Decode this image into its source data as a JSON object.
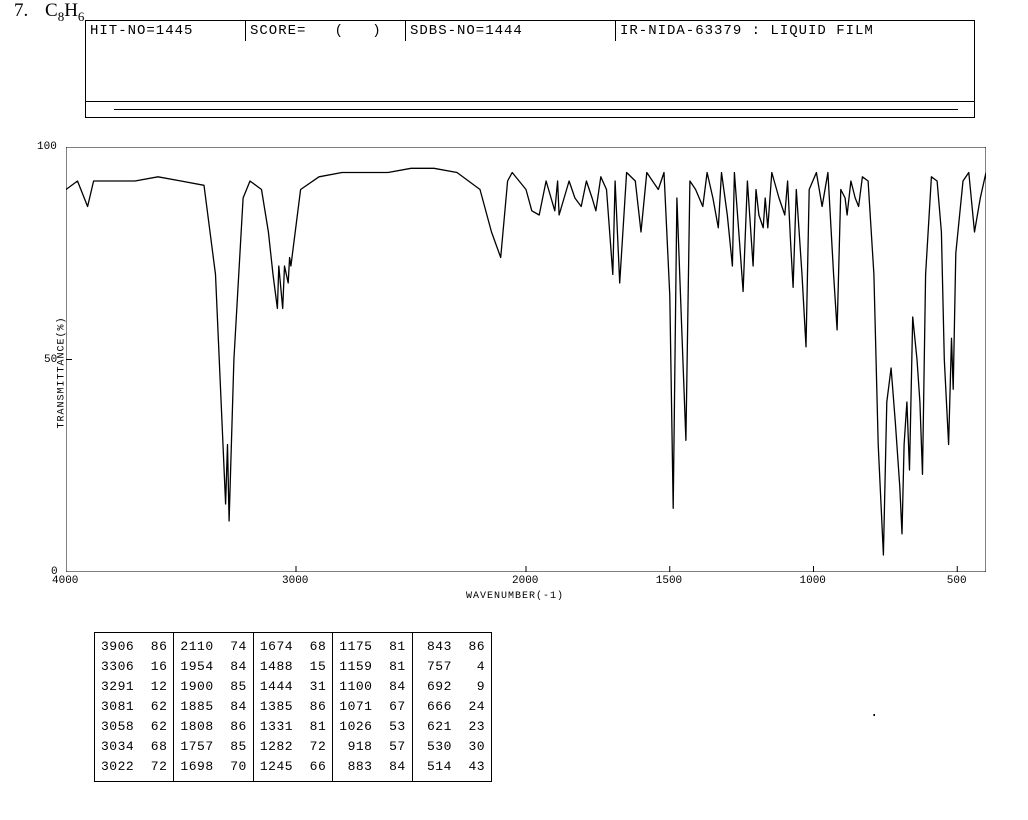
{
  "problem": {
    "number": "7.",
    "formula_base": "C",
    "sub1": "8",
    "mid": "H",
    "sub2": "6"
  },
  "header": {
    "hit_no": "HIT-NO=1445",
    "score": "SCORE=   (   )",
    "sdbs_no": "SDBS-NO=1444",
    "ir": "IR-NIDA-63379 : LIQUID FILM"
  },
  "chart": {
    "type": "line",
    "xlabel": "WAVENUMBER(-1)",
    "ylabel": "TRANSMITTANCE(%)",
    "xlim": [
      400,
      4000
    ],
    "ylim": [
      0,
      100
    ],
    "xticks": [
      4000,
      3000,
      2000,
      1500,
      1000,
      500
    ],
    "yticks": [
      0,
      50,
      100
    ],
    "xtick_labels": [
      "4000",
      "3000",
      "2000",
      "1500",
      "1000",
      "500"
    ],
    "ytick_labels": [
      "0",
      "50",
      "100"
    ],
    "line_color": "#000000",
    "background_color": "#ffffff",
    "border_color": "#000000",
    "label_fontsize": 10,
    "tick_fontsize": 11,
    "points": [
      [
        4000,
        90
      ],
      [
        3950,
        92
      ],
      [
        3906,
        86
      ],
      [
        3880,
        92
      ],
      [
        3800,
        92
      ],
      [
        3700,
        92
      ],
      [
        3600,
        93
      ],
      [
        3500,
        92
      ],
      [
        3400,
        91
      ],
      [
        3350,
        70
      ],
      [
        3306,
        16
      ],
      [
        3298,
        30
      ],
      [
        3291,
        12
      ],
      [
        3270,
        50
      ],
      [
        3230,
        88
      ],
      [
        3200,
        92
      ],
      [
        3150,
        90
      ],
      [
        3120,
        80
      ],
      [
        3100,
        70
      ],
      [
        3081,
        62
      ],
      [
        3075,
        72
      ],
      [
        3058,
        62
      ],
      [
        3050,
        72
      ],
      [
        3034,
        68
      ],
      [
        3028,
        74
      ],
      [
        3022,
        72
      ],
      [
        2980,
        90
      ],
      [
        2900,
        93
      ],
      [
        2800,
        94
      ],
      [
        2700,
        94
      ],
      [
        2600,
        94
      ],
      [
        2500,
        95
      ],
      [
        2400,
        95
      ],
      [
        2300,
        94
      ],
      [
        2200,
        90
      ],
      [
        2150,
        80
      ],
      [
        2110,
        74
      ],
      [
        2080,
        92
      ],
      [
        2060,
        94
      ],
      [
        2000,
        90
      ],
      [
        1980,
        85
      ],
      [
        1954,
        84
      ],
      [
        1930,
        92
      ],
      [
        1900,
        85
      ],
      [
        1890,
        92
      ],
      [
        1885,
        84
      ],
      [
        1850,
        92
      ],
      [
        1830,
        88
      ],
      [
        1808,
        86
      ],
      [
        1790,
        92
      ],
      [
        1770,
        88
      ],
      [
        1757,
        85
      ],
      [
        1740,
        93
      ],
      [
        1720,
        90
      ],
      [
        1698,
        70
      ],
      [
        1690,
        92
      ],
      [
        1674,
        68
      ],
      [
        1650,
        94
      ],
      [
        1620,
        92
      ],
      [
        1600,
        80
      ],
      [
        1580,
        94
      ],
      [
        1560,
        92
      ],
      [
        1540,
        90
      ],
      [
        1520,
        94
      ],
      [
        1500,
        65
      ],
      [
        1488,
        15
      ],
      [
        1475,
        88
      ],
      [
        1460,
        60
      ],
      [
        1444,
        31
      ],
      [
        1430,
        92
      ],
      [
        1410,
        90
      ],
      [
        1385,
        86
      ],
      [
        1370,
        94
      ],
      [
        1350,
        88
      ],
      [
        1331,
        81
      ],
      [
        1320,
        94
      ],
      [
        1300,
        84
      ],
      [
        1282,
        72
      ],
      [
        1275,
        94
      ],
      [
        1260,
        80
      ],
      [
        1245,
        66
      ],
      [
        1230,
        92
      ],
      [
        1210,
        72
      ],
      [
        1200,
        90
      ],
      [
        1190,
        84
      ],
      [
        1175,
        81
      ],
      [
        1168,
        88
      ],
      [
        1159,
        81
      ],
      [
        1145,
        94
      ],
      [
        1120,
        88
      ],
      [
        1100,
        84
      ],
      [
        1090,
        92
      ],
      [
        1080,
        78
      ],
      [
        1071,
        67
      ],
      [
        1060,
        90
      ],
      [
        1040,
        70
      ],
      [
        1026,
        53
      ],
      [
        1015,
        90
      ],
      [
        990,
        94
      ],
      [
        970,
        86
      ],
      [
        950,
        94
      ],
      [
        930,
        70
      ],
      [
        918,
        57
      ],
      [
        905,
        90
      ],
      [
        890,
        88
      ],
      [
        883,
        84
      ],
      [
        870,
        92
      ],
      [
        855,
        88
      ],
      [
        843,
        86
      ],
      [
        830,
        93
      ],
      [
        810,
        92
      ],
      [
        790,
        70
      ],
      [
        775,
        30
      ],
      [
        757,
        4
      ],
      [
        745,
        40
      ],
      [
        730,
        48
      ],
      [
        715,
        35
      ],
      [
        700,
        20
      ],
      [
        692,
        9
      ],
      [
        685,
        30
      ],
      [
        675,
        40
      ],
      [
        666,
        24
      ],
      [
        655,
        60
      ],
      [
        640,
        50
      ],
      [
        630,
        40
      ],
      [
        621,
        23
      ],
      [
        610,
        70
      ],
      [
        590,
        93
      ],
      [
        570,
        92
      ],
      [
        555,
        80
      ],
      [
        545,
        50
      ],
      [
        530,
        30
      ],
      [
        520,
        55
      ],
      [
        514,
        43
      ],
      [
        505,
        75
      ],
      [
        480,
        92
      ],
      [
        460,
        94
      ],
      [
        440,
        80
      ],
      [
        420,
        88
      ],
      [
        400,
        94
      ]
    ]
  },
  "peak_table": {
    "columns": [
      [
        [
          3906,
          86
        ],
        [
          3306,
          16
        ],
        [
          3291,
          12
        ],
        [
          3081,
          62
        ],
        [
          3058,
          62
        ],
        [
          3034,
          68
        ],
        [
          3022,
          72
        ]
      ],
      [
        [
          2110,
          74
        ],
        [
          1954,
          84
        ],
        [
          1900,
          85
        ],
        [
          1885,
          84
        ],
        [
          1808,
          86
        ],
        [
          1757,
          85
        ],
        [
          1698,
          70
        ]
      ],
      [
        [
          1674,
          68
        ],
        [
          1488,
          15
        ],
        [
          1444,
          31
        ],
        [
          1385,
          86
        ],
        [
          1331,
          81
        ],
        [
          1282,
          72
        ],
        [
          1245,
          66
        ]
      ],
      [
        [
          1175,
          81
        ],
        [
          1159,
          81
        ],
        [
          1100,
          84
        ],
        [
          1071,
          67
        ],
        [
          1026,
          53
        ],
        [
          918,
          57
        ],
        [
          883,
          84
        ]
      ],
      [
        [
          843,
          86
        ],
        [
          757,
          4
        ],
        [
          692,
          9
        ],
        [
          666,
          24
        ],
        [
          621,
          23
        ],
        [
          530,
          30
        ],
        [
          514,
          43
        ]
      ]
    ]
  },
  "colors": {
    "fg": "#000000",
    "bg": "#ffffff"
  }
}
